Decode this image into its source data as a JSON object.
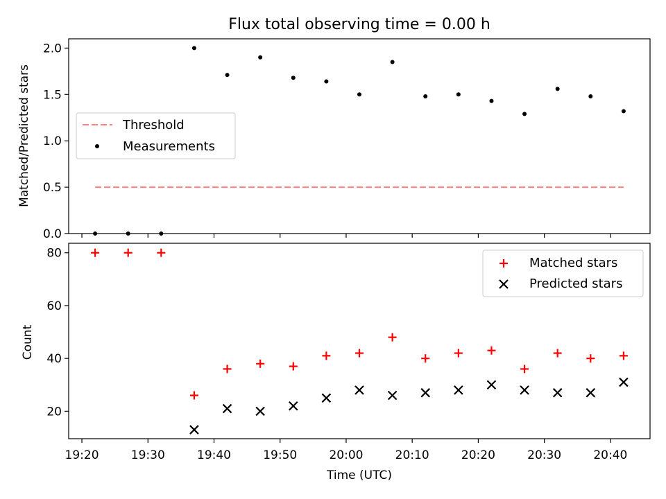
{
  "figure": {
    "title": "Flux total observing time = 0.00 h",
    "xlabel": "Time (UTC)"
  },
  "chart_data": [
    {
      "type": "scatter",
      "ylabel": "Matched/Predicted stars",
      "xlim": [
        "19:18:00",
        "20:46:00"
      ],
      "ylim": [
        0,
        2.1
      ],
      "yticks": [
        "0.0",
        "0.5",
        "1.0",
        "1.5",
        "2.0"
      ],
      "legend_position": "center-left",
      "series": [
        {
          "name": "Threshold",
          "kind": "dashed-line",
          "color": "#ff7f7f",
          "x": [
            "19:22",
            "20:42"
          ],
          "y": [
            0.5,
            0.5
          ]
        },
        {
          "name": "Measurements",
          "kind": "dot",
          "color": "#000000",
          "x": [
            "19:22",
            "19:27",
            "19:32",
            "19:37",
            "19:42",
            "19:47",
            "19:52",
            "19:57",
            "20:02",
            "20:07",
            "20:12",
            "20:17",
            "20:22",
            "20:27",
            "20:32",
            "20:37",
            "20:42"
          ],
          "y": [
            0.0,
            0.0,
            0.0,
            2.0,
            1.71,
            1.9,
            1.68,
            1.64,
            1.5,
            1.85,
            1.48,
            1.5,
            1.43,
            1.29,
            1.56,
            1.48,
            1.32
          ]
        }
      ]
    },
    {
      "type": "scatter",
      "ylabel": "Count",
      "xlim": [
        "19:18:00",
        "20:46:00"
      ],
      "ylim": [
        9.6,
        83.6
      ],
      "yticks": [
        "20",
        "40",
        "60",
        "80"
      ],
      "xticks": [
        "19:20",
        "19:30",
        "19:40",
        "19:50",
        "20:00",
        "20:10",
        "20:20",
        "20:30",
        "20:40"
      ],
      "legend_position": "upper-right",
      "series": [
        {
          "name": "Matched stars",
          "kind": "plus",
          "color": "#ff0000",
          "x": [
            "19:22",
            "19:27",
            "19:32",
            "19:37",
            "19:42",
            "19:47",
            "19:52",
            "19:57",
            "20:02",
            "20:07",
            "20:12",
            "20:17",
            "20:22",
            "20:27",
            "20:32",
            "20:37",
            "20:42"
          ],
          "y": [
            80,
            80,
            80,
            26,
            36,
            38,
            37,
            41,
            42,
            48,
            40,
            42,
            43,
            36,
            42,
            40,
            41
          ]
        },
        {
          "name": "Predicted stars",
          "kind": "cross",
          "color": "#000000",
          "x": [
            "19:22",
            "19:27",
            "19:32",
            "19:37",
            "19:42",
            "19:47",
            "19:52",
            "19:57",
            "20:02",
            "20:07",
            "20:12",
            "20:17",
            "20:22",
            "20:27",
            "20:32",
            "20:37",
            "20:42"
          ],
          "y": [
            null,
            null,
            null,
            13,
            21,
            20,
            22,
            25,
            28,
            26,
            27,
            28,
            30,
            28,
            27,
            27,
            31
          ]
        }
      ]
    }
  ]
}
